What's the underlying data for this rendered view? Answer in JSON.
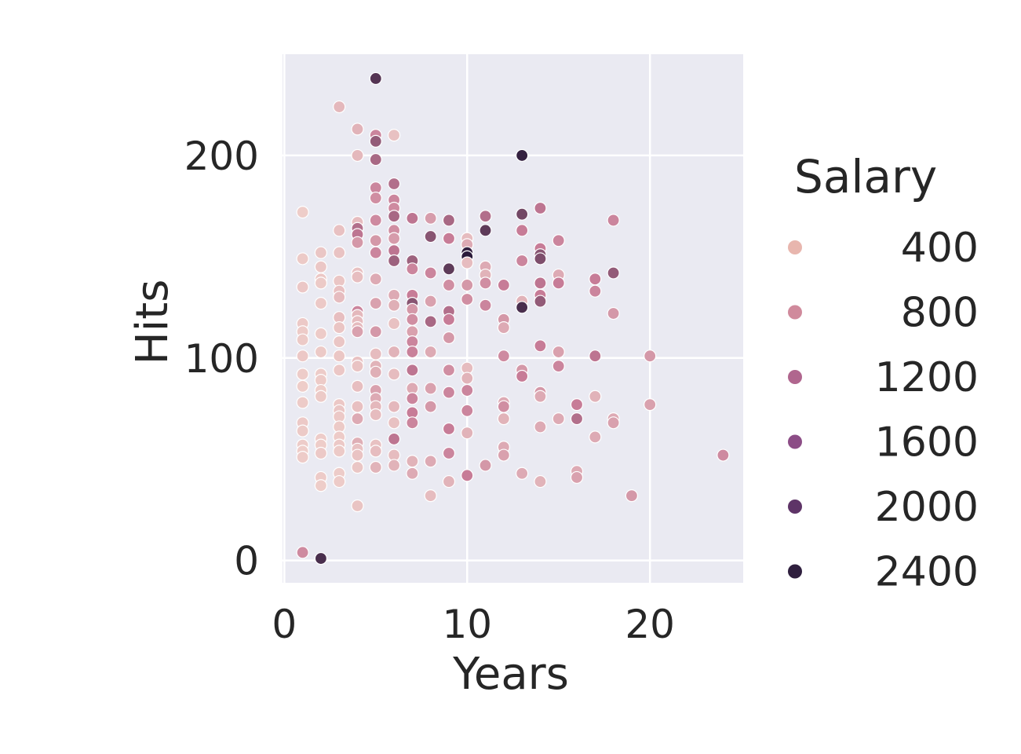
{
  "chart_data": {
    "type": "scatter",
    "xlabel": "Years",
    "ylabel": "Hits",
    "xlim": [
      -0.1,
      25.1
    ],
    "ylim": [
      -11,
      250
    ],
    "x_ticks": [
      0,
      10,
      20
    ],
    "y_ticks": [
      0,
      100,
      200
    ],
    "grid": true,
    "legend": {
      "title": "Salary",
      "placement": "right",
      "entries": [
        {
          "label": "400",
          "color": "#e8b6ae"
        },
        {
          "label": "800",
          "color": "#d08a9c"
        },
        {
          "label": "1200",
          "color": "#b0668e"
        },
        {
          "label": "1600",
          "color": "#8c4d86"
        },
        {
          "label": "2000",
          "color": "#5e3467"
        },
        {
          "label": "2400",
          "color": "#2f1f3e"
        }
      ]
    },
    "colors": {
      "background": "#eaeaf2",
      "grid": "#ffffff",
      "salary_low": "#f3d8d0",
      "salary_mid": "#c77c97",
      "salary_high": "#2a1a3a"
    },
    "salary_range": [
      0,
      2500
    ],
    "points": [
      {
        "x": 1,
        "y": 172,
        "s": 120
      },
      {
        "x": 1,
        "y": 149,
        "s": 150
      },
      {
        "x": 1,
        "y": 135,
        "s": 180
      },
      {
        "x": 1,
        "y": 117,
        "s": 160
      },
      {
        "x": 1,
        "y": 113,
        "s": 140
      },
      {
        "x": 1,
        "y": 109,
        "s": 150
      },
      {
        "x": 1,
        "y": 101,
        "s": 170
      },
      {
        "x": 1,
        "y": 92,
        "s": 130
      },
      {
        "x": 1,
        "y": 86,
        "s": 120
      },
      {
        "x": 1,
        "y": 78,
        "s": 140
      },
      {
        "x": 1,
        "y": 68,
        "s": 160
      },
      {
        "x": 1,
        "y": 64,
        "s": 150
      },
      {
        "x": 1,
        "y": 57,
        "s": 130
      },
      {
        "x": 1,
        "y": 54,
        "s": 120
      },
      {
        "x": 1,
        "y": 51,
        "s": 140
      },
      {
        "x": 1,
        "y": 4,
        "s": 850
      },
      {
        "x": 2,
        "y": 1,
        "s": 2200
      },
      {
        "x": 2,
        "y": 152,
        "s": 200
      },
      {
        "x": 2,
        "y": 145,
        "s": 180
      },
      {
        "x": 2,
        "y": 139,
        "s": 170
      },
      {
        "x": 2,
        "y": 137,
        "s": 150
      },
      {
        "x": 2,
        "y": 127,
        "s": 160
      },
      {
        "x": 2,
        "y": 112,
        "s": 140
      },
      {
        "x": 2,
        "y": 103,
        "s": 150
      },
      {
        "x": 2,
        "y": 92,
        "s": 130
      },
      {
        "x": 2,
        "y": 89,
        "s": 140
      },
      {
        "x": 2,
        "y": 84,
        "s": 120
      },
      {
        "x": 2,
        "y": 81,
        "s": 150
      },
      {
        "x": 2,
        "y": 60,
        "s": 130
      },
      {
        "x": 2,
        "y": 57,
        "s": 120
      },
      {
        "x": 2,
        "y": 53,
        "s": 160
      },
      {
        "x": 2,
        "y": 41,
        "s": 140
      },
      {
        "x": 2,
        "y": 37,
        "s": 120
      },
      {
        "x": 3,
        "y": 224,
        "s": 350
      },
      {
        "x": 3,
        "y": 163,
        "s": 250
      },
      {
        "x": 3,
        "y": 152,
        "s": 230
      },
      {
        "x": 3,
        "y": 138,
        "s": 200
      },
      {
        "x": 3,
        "y": 133,
        "s": 260
      },
      {
        "x": 3,
        "y": 130,
        "s": 300
      },
      {
        "x": 3,
        "y": 120,
        "s": 280
      },
      {
        "x": 3,
        "y": 115,
        "s": 210
      },
      {
        "x": 3,
        "y": 108,
        "s": 200
      },
      {
        "x": 3,
        "y": 101,
        "s": 190
      },
      {
        "x": 3,
        "y": 94,
        "s": 180
      },
      {
        "x": 3,
        "y": 77,
        "s": 170
      },
      {
        "x": 3,
        "y": 74,
        "s": 200
      },
      {
        "x": 3,
        "y": 71,
        "s": 160
      },
      {
        "x": 3,
        "y": 66,
        "s": 150
      },
      {
        "x": 3,
        "y": 61,
        "s": 140
      },
      {
        "x": 3,
        "y": 57,
        "s": 160
      },
      {
        "x": 3,
        "y": 54,
        "s": 150
      },
      {
        "x": 3,
        "y": 43,
        "s": 130
      },
      {
        "x": 3,
        "y": 39,
        "s": 140
      },
      {
        "x": 4,
        "y": 213,
        "s": 400
      },
      {
        "x": 4,
        "y": 200,
        "s": 350
      },
      {
        "x": 4,
        "y": 167,
        "s": 300
      },
      {
        "x": 4,
        "y": 164,
        "s": 1200
      },
      {
        "x": 4,
        "y": 161,
        "s": 1100
      },
      {
        "x": 4,
        "y": 157,
        "s": 700
      },
      {
        "x": 4,
        "y": 142,
        "s": 250
      },
      {
        "x": 4,
        "y": 140,
        "s": 280
      },
      {
        "x": 4,
        "y": 123,
        "s": 900
      },
      {
        "x": 4,
        "y": 121,
        "s": 350
      },
      {
        "x": 4,
        "y": 118,
        "s": 300
      },
      {
        "x": 4,
        "y": 115,
        "s": 320
      },
      {
        "x": 4,
        "y": 113,
        "s": 600
      },
      {
        "x": 4,
        "y": 98,
        "s": 250
      },
      {
        "x": 4,
        "y": 96,
        "s": 230
      },
      {
        "x": 4,
        "y": 86,
        "s": 280
      },
      {
        "x": 4,
        "y": 76,
        "s": 260
      },
      {
        "x": 4,
        "y": 70,
        "s": 500
      },
      {
        "x": 4,
        "y": 58,
        "s": 450
      },
      {
        "x": 4,
        "y": 55,
        "s": 250
      },
      {
        "x": 4,
        "y": 52,
        "s": 230
      },
      {
        "x": 4,
        "y": 46,
        "s": 200
      },
      {
        "x": 4,
        "y": 27,
        "s": 220
      },
      {
        "x": 5,
        "y": 238,
        "s": 2100
      },
      {
        "x": 5,
        "y": 210,
        "s": 900
      },
      {
        "x": 5,
        "y": 207,
        "s": 1500
      },
      {
        "x": 5,
        "y": 198,
        "s": 1300
      },
      {
        "x": 5,
        "y": 184,
        "s": 900
      },
      {
        "x": 5,
        "y": 179,
        "s": 800
      },
      {
        "x": 5,
        "y": 168,
        "s": 850
      },
      {
        "x": 5,
        "y": 158,
        "s": 700
      },
      {
        "x": 5,
        "y": 152,
        "s": 900
      },
      {
        "x": 5,
        "y": 139,
        "s": 500
      },
      {
        "x": 5,
        "y": 127,
        "s": 600
      },
      {
        "x": 5,
        "y": 113,
        "s": 700
      },
      {
        "x": 5,
        "y": 102,
        "s": 300
      },
      {
        "x": 5,
        "y": 96,
        "s": 400
      },
      {
        "x": 5,
        "y": 93,
        "s": 450
      },
      {
        "x": 5,
        "y": 84,
        "s": 600
      },
      {
        "x": 5,
        "y": 80,
        "s": 500
      },
      {
        "x": 5,
        "y": 76,
        "s": 350
      },
      {
        "x": 5,
        "y": 72,
        "s": 300
      },
      {
        "x": 5,
        "y": 57,
        "s": 250
      },
      {
        "x": 5,
        "y": 54,
        "s": 300
      },
      {
        "x": 5,
        "y": 46,
        "s": 400
      },
      {
        "x": 6,
        "y": 210,
        "s": 250
      },
      {
        "x": 6,
        "y": 186,
        "s": 1200
      },
      {
        "x": 6,
        "y": 178,
        "s": 900
      },
      {
        "x": 6,
        "y": 174,
        "s": 850
      },
      {
        "x": 6,
        "y": 170,
        "s": 1300
      },
      {
        "x": 6,
        "y": 163,
        "s": 800
      },
      {
        "x": 6,
        "y": 159,
        "s": 650
      },
      {
        "x": 6,
        "y": 153,
        "s": 1100
      },
      {
        "x": 6,
        "y": 148,
        "s": 1400
      },
      {
        "x": 6,
        "y": 131,
        "s": 500
      },
      {
        "x": 6,
        "y": 126,
        "s": 450
      },
      {
        "x": 6,
        "y": 117,
        "s": 250
      },
      {
        "x": 6,
        "y": 103,
        "s": 400
      },
      {
        "x": 6,
        "y": 92,
        "s": 300
      },
      {
        "x": 6,
        "y": 76,
        "s": 350
      },
      {
        "x": 6,
        "y": 68,
        "s": 250
      },
      {
        "x": 6,
        "y": 60,
        "s": 1100
      },
      {
        "x": 6,
        "y": 52,
        "s": 300
      },
      {
        "x": 6,
        "y": 47,
        "s": 400
      },
      {
        "x": 7,
        "y": 169,
        "s": 1100
      },
      {
        "x": 7,
        "y": 148,
        "s": 1400
      },
      {
        "x": 7,
        "y": 144,
        "s": 900
      },
      {
        "x": 7,
        "y": 131,
        "s": 1000
      },
      {
        "x": 7,
        "y": 127,
        "s": 1600
      },
      {
        "x": 7,
        "y": 124,
        "s": 700
      },
      {
        "x": 7,
        "y": 119,
        "s": 800
      },
      {
        "x": 7,
        "y": 113,
        "s": 600
      },
      {
        "x": 7,
        "y": 108,
        "s": 900
      },
      {
        "x": 7,
        "y": 103,
        "s": 950
      },
      {
        "x": 7,
        "y": 94,
        "s": 1100
      },
      {
        "x": 7,
        "y": 85,
        "s": 500
      },
      {
        "x": 7,
        "y": 80,
        "s": 900
      },
      {
        "x": 7,
        "y": 73,
        "s": 1000
      },
      {
        "x": 7,
        "y": 68,
        "s": 900
      },
      {
        "x": 7,
        "y": 49,
        "s": 400
      },
      {
        "x": 7,
        "y": 43,
        "s": 500
      },
      {
        "x": 8,
        "y": 169,
        "s": 650
      },
      {
        "x": 8,
        "y": 160,
        "s": 1600
      },
      {
        "x": 8,
        "y": 142,
        "s": 900
      },
      {
        "x": 8,
        "y": 128,
        "s": 600
      },
      {
        "x": 8,
        "y": 118,
        "s": 1300
      },
      {
        "x": 8,
        "y": 103,
        "s": 500
      },
      {
        "x": 8,
        "y": 85,
        "s": 600
      },
      {
        "x": 8,
        "y": 76,
        "s": 700
      },
      {
        "x": 8,
        "y": 49,
        "s": 500
      },
      {
        "x": 8,
        "y": 32,
        "s": 300
      },
      {
        "x": 9,
        "y": 168,
        "s": 1300
      },
      {
        "x": 9,
        "y": 159,
        "s": 1000
      },
      {
        "x": 9,
        "y": 144,
        "s": 2000
      },
      {
        "x": 9,
        "y": 136,
        "s": 800
      },
      {
        "x": 9,
        "y": 123,
        "s": 1200
      },
      {
        "x": 9,
        "y": 119,
        "s": 1000
      },
      {
        "x": 9,
        "y": 110,
        "s": 700
      },
      {
        "x": 9,
        "y": 94,
        "s": 800
      },
      {
        "x": 9,
        "y": 83,
        "s": 900
      },
      {
        "x": 9,
        "y": 65,
        "s": 1000
      },
      {
        "x": 9,
        "y": 53,
        "s": 900
      },
      {
        "x": 9,
        "y": 39,
        "s": 400
      },
      {
        "x": 10,
        "y": 159,
        "s": 300
      },
      {
        "x": 10,
        "y": 156,
        "s": 500
      },
      {
        "x": 10,
        "y": 152,
        "s": 2400
      },
      {
        "x": 10,
        "y": 150,
        "s": 2500
      },
      {
        "x": 10,
        "y": 147,
        "s": 300
      },
      {
        "x": 10,
        "y": 136,
        "s": 700
      },
      {
        "x": 10,
        "y": 129,
        "s": 800
      },
      {
        "x": 10,
        "y": 95,
        "s": 300
      },
      {
        "x": 10,
        "y": 90,
        "s": 400
      },
      {
        "x": 10,
        "y": 84,
        "s": 900
      },
      {
        "x": 10,
        "y": 74,
        "s": 900
      },
      {
        "x": 10,
        "y": 63,
        "s": 400
      },
      {
        "x": 10,
        "y": 42,
        "s": 1000
      },
      {
        "x": 11,
        "y": 170,
        "s": 1200
      },
      {
        "x": 11,
        "y": 163,
        "s": 2000
      },
      {
        "x": 11,
        "y": 145,
        "s": 500
      },
      {
        "x": 11,
        "y": 141,
        "s": 400
      },
      {
        "x": 11,
        "y": 137,
        "s": 800
      },
      {
        "x": 11,
        "y": 126,
        "s": 900
      },
      {
        "x": 11,
        "y": 47,
        "s": 700
      },
      {
        "x": 12,
        "y": 136,
        "s": 1000
      },
      {
        "x": 12,
        "y": 119,
        "s": 700
      },
      {
        "x": 12,
        "y": 115,
        "s": 500
      },
      {
        "x": 12,
        "y": 101,
        "s": 850
      },
      {
        "x": 12,
        "y": 78,
        "s": 500
      },
      {
        "x": 12,
        "y": 76,
        "s": 800
      },
      {
        "x": 12,
        "y": 70,
        "s": 400
      },
      {
        "x": 12,
        "y": 56,
        "s": 500
      },
      {
        "x": 12,
        "y": 52,
        "s": 600
      },
      {
        "x": 13,
        "y": 200,
        "s": 2400
      },
      {
        "x": 13,
        "y": 171,
        "s": 1800
      },
      {
        "x": 13,
        "y": 163,
        "s": 1000
      },
      {
        "x": 13,
        "y": 148,
        "s": 900
      },
      {
        "x": 13,
        "y": 128,
        "s": 400
      },
      {
        "x": 13,
        "y": 125,
        "s": 2200
      },
      {
        "x": 13,
        "y": 94,
        "s": 700
      },
      {
        "x": 13,
        "y": 91,
        "s": 1000
      },
      {
        "x": 13,
        "y": 43,
        "s": 500
      },
      {
        "x": 14,
        "y": 174,
        "s": 1100
      },
      {
        "x": 14,
        "y": 154,
        "s": 1000
      },
      {
        "x": 14,
        "y": 151,
        "s": 1600
      },
      {
        "x": 14,
        "y": 149,
        "s": 1700
      },
      {
        "x": 14,
        "y": 137,
        "s": 1100
      },
      {
        "x": 14,
        "y": 131,
        "s": 1000
      },
      {
        "x": 14,
        "y": 128,
        "s": 1500
      },
      {
        "x": 14,
        "y": 106,
        "s": 1000
      },
      {
        "x": 14,
        "y": 83,
        "s": 700
      },
      {
        "x": 14,
        "y": 81,
        "s": 500
      },
      {
        "x": 14,
        "y": 66,
        "s": 500
      },
      {
        "x": 14,
        "y": 39,
        "s": 400
      },
      {
        "x": 15,
        "y": 158,
        "s": 900
      },
      {
        "x": 15,
        "y": 141,
        "s": 500
      },
      {
        "x": 15,
        "y": 137,
        "s": 1000
      },
      {
        "x": 15,
        "y": 103,
        "s": 600
      },
      {
        "x": 15,
        "y": 96,
        "s": 900
      },
      {
        "x": 15,
        "y": 70,
        "s": 500
      },
      {
        "x": 16,
        "y": 77,
        "s": 1000
      },
      {
        "x": 16,
        "y": 70,
        "s": 1200
      },
      {
        "x": 16,
        "y": 44,
        "s": 500
      },
      {
        "x": 16,
        "y": 41,
        "s": 600
      },
      {
        "x": 17,
        "y": 139,
        "s": 1000
      },
      {
        "x": 17,
        "y": 133,
        "s": 900
      },
      {
        "x": 17,
        "y": 101,
        "s": 1100
      },
      {
        "x": 17,
        "y": 81,
        "s": 400
      },
      {
        "x": 17,
        "y": 61,
        "s": 500
      },
      {
        "x": 18,
        "y": 168,
        "s": 900
      },
      {
        "x": 18,
        "y": 142,
        "s": 1500
      },
      {
        "x": 18,
        "y": 122,
        "s": 700
      },
      {
        "x": 18,
        "y": 70,
        "s": 500
      },
      {
        "x": 18,
        "y": 68,
        "s": 600
      },
      {
        "x": 19,
        "y": 32,
        "s": 700
      },
      {
        "x": 20,
        "y": 101,
        "s": 700
      },
      {
        "x": 20,
        "y": 77,
        "s": 600
      },
      {
        "x": 24,
        "y": 52,
        "s": 850
      }
    ]
  }
}
